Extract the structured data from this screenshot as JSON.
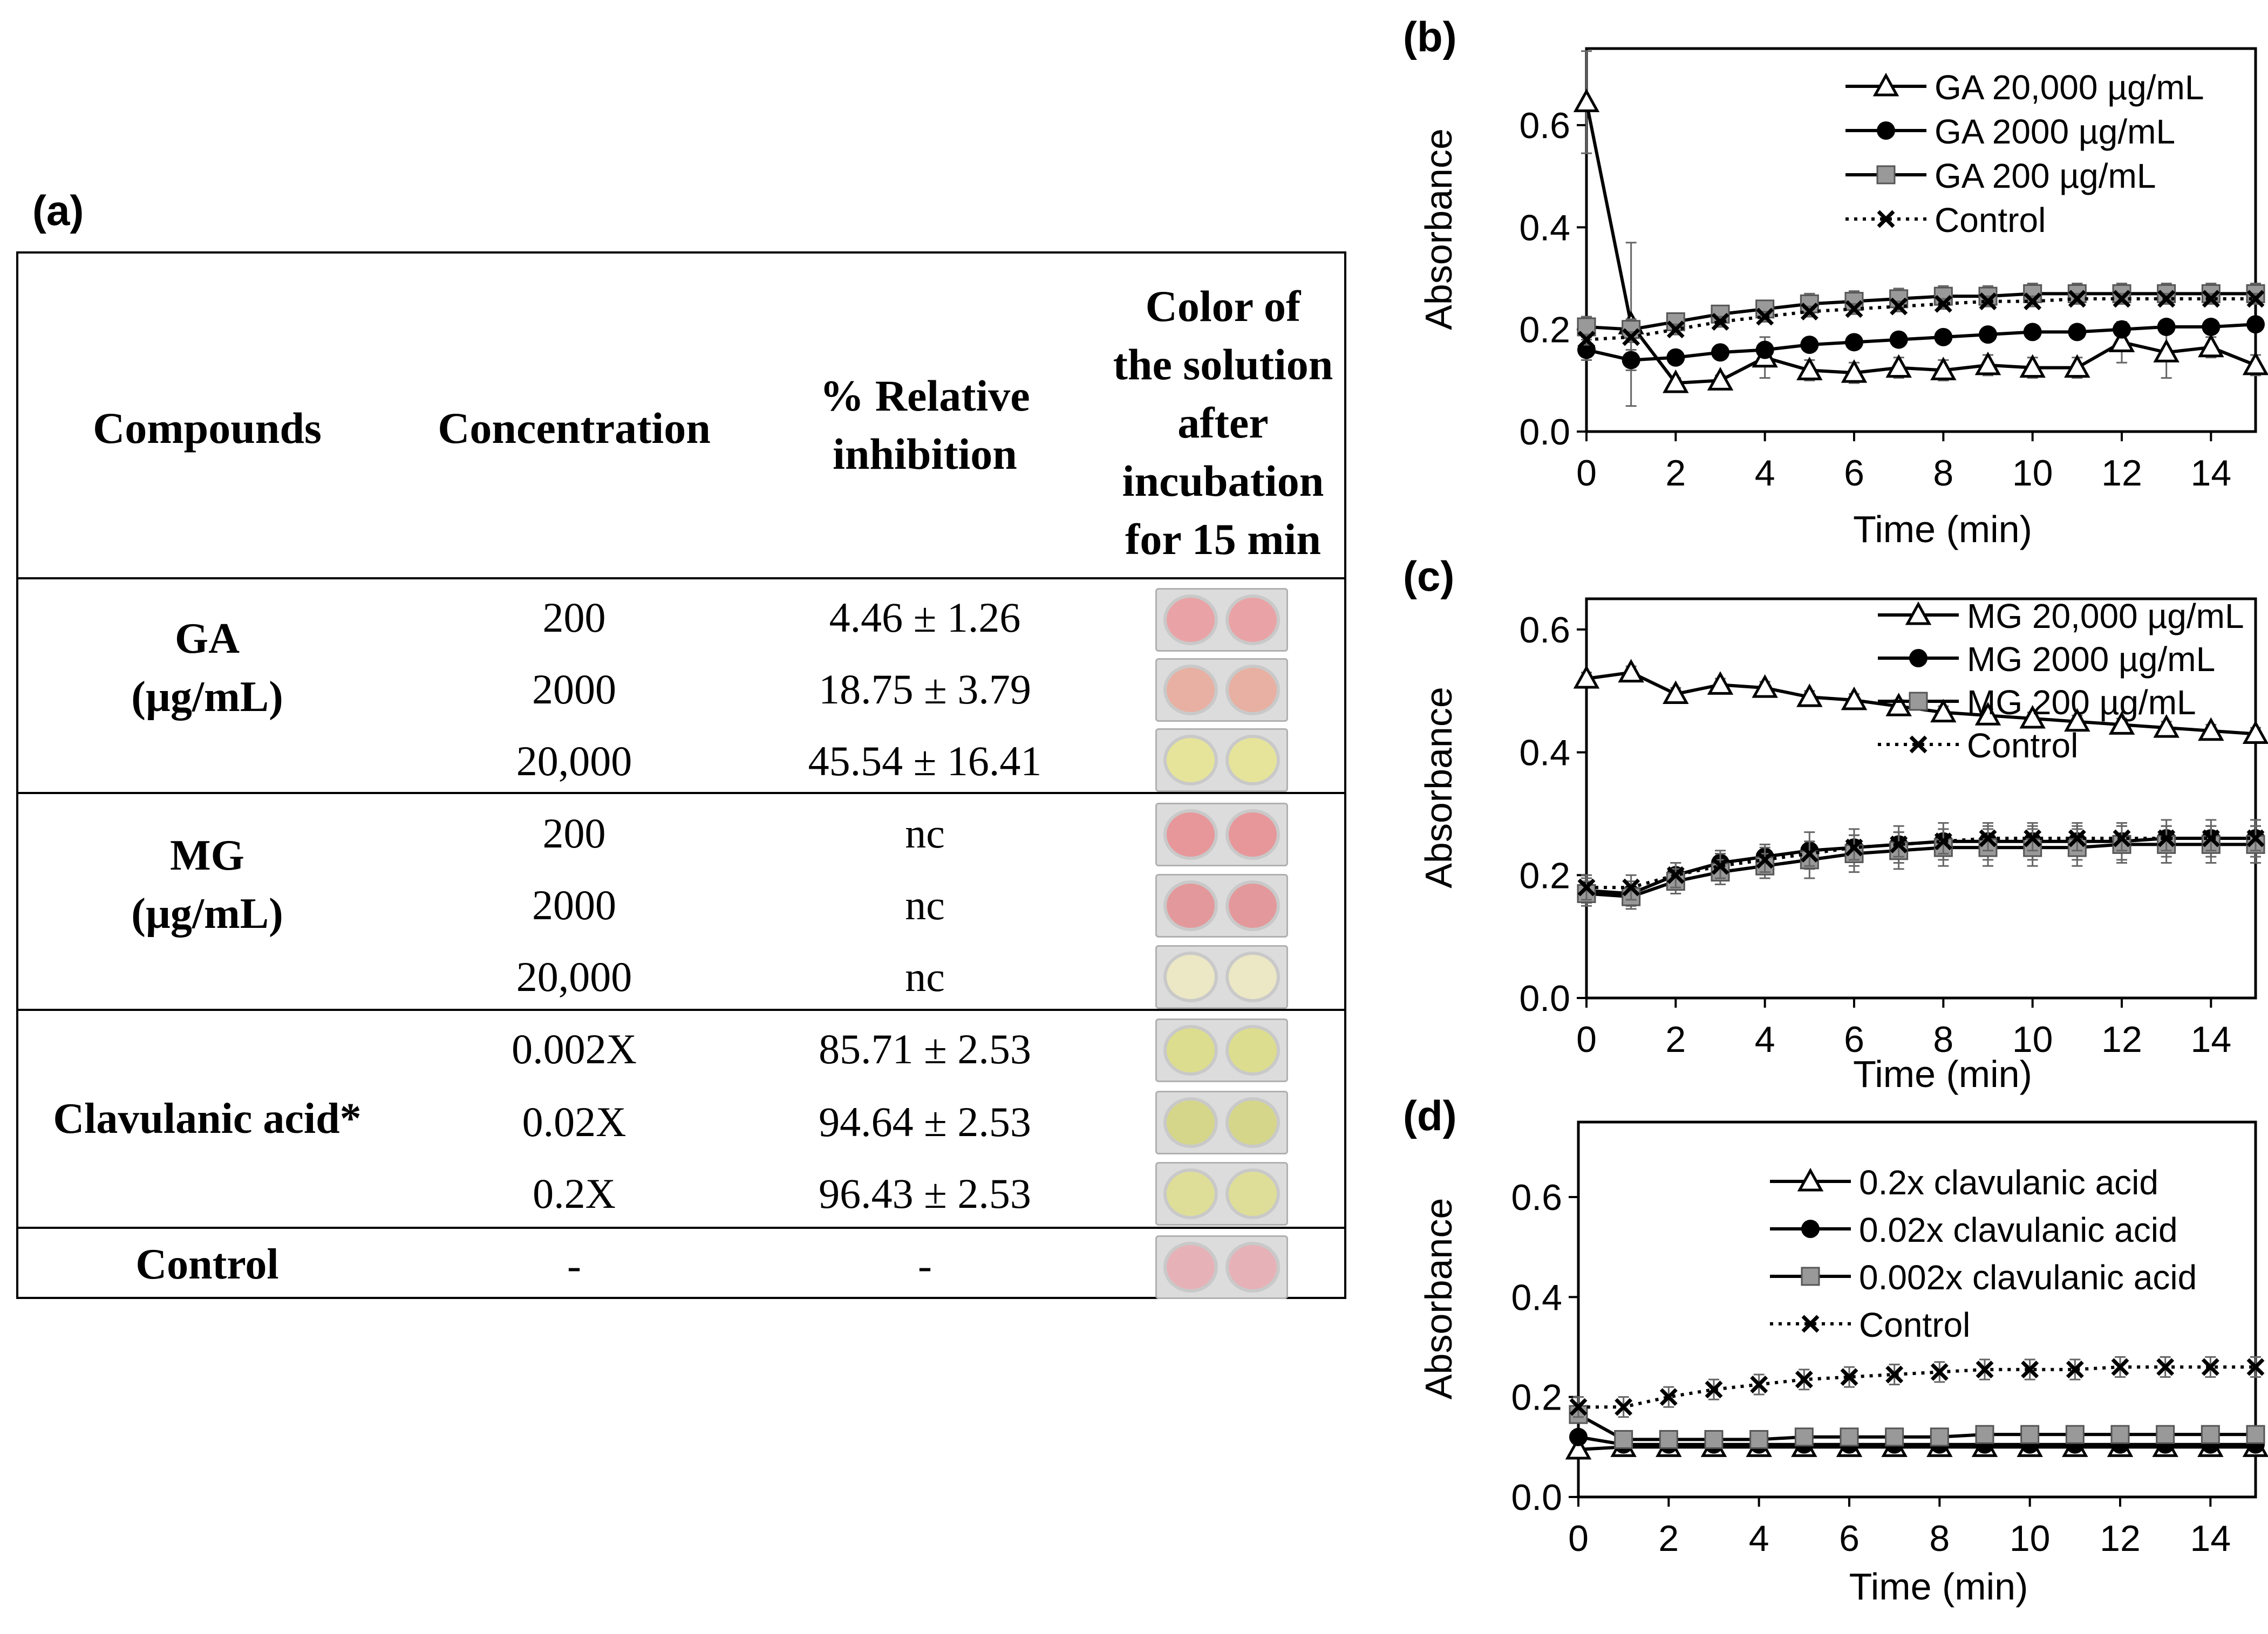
{
  "panel_a": {
    "label": "(a)",
    "headers": {
      "compounds": "Compounds",
      "concentration": "Concentration",
      "inhibition_line1": "% Relative",
      "inhibition_line2": "inhibition",
      "color_line1": "Color of",
      "color_line2": "the solution",
      "color_line3": "after",
      "color_line4": "incubation",
      "color_line5": "for  15 min"
    },
    "groups": [
      {
        "name_line1": "GA",
        "name_line2": "(µg/mL)",
        "rows": [
          {
            "conc": "200",
            "inhibition": "4.46 ± 1.26",
            "well_color": "#e9a3a6"
          },
          {
            "conc": "2000",
            "inhibition": "18.75 ± 3.79",
            "well_color": "#e8b0a2"
          },
          {
            "conc": "20,000",
            "inhibition": "45.54 ± 16.41",
            "well_color": "#e6e49a"
          }
        ]
      },
      {
        "name_line1": "MG",
        "name_line2": "(µg/mL)",
        "rows": [
          {
            "conc": "200",
            "inhibition": "nc",
            "well_color": "#e7979a"
          },
          {
            "conc": "2000",
            "inhibition": "nc",
            "well_color": "#e3999b"
          },
          {
            "conc": "20,000",
            "inhibition": "nc",
            "well_color": "#ece7c4"
          }
        ]
      },
      {
        "name_line1": "Clavulanic acid*",
        "name_line2": "",
        "rows": [
          {
            "conc": "0.002X",
            "inhibition": "85.71 ± 2.53",
            "well_color": "#dcdd8e"
          },
          {
            "conc": "0.02X",
            "inhibition": "94.64 ± 2.53",
            "well_color": "#d6d68a"
          },
          {
            "conc": "0.2X",
            "inhibition": "96.43 ± 2.53",
            "well_color": "#dede98"
          }
        ]
      },
      {
        "name_line1": "Control",
        "name_line2": "",
        "rows": [
          {
            "conc": "-",
            "inhibition": "-",
            "well_color": "#e6b2b8"
          }
        ]
      }
    ]
  },
  "chart_data": [
    {
      "panel": "(b)",
      "type": "line",
      "xlabel": "Time (min)",
      "ylabel": "Absorbance",
      "xlim": [
        0,
        15
      ],
      "ylim": [
        0,
        0.75
      ],
      "xticks": [
        "0",
        "2",
        "4",
        "6",
        "8",
        "10",
        "12",
        "14"
      ],
      "yticks": [
        "0.0",
        "0.2",
        "0.4",
        "0.6"
      ],
      "x": [
        0,
        1,
        2,
        3,
        4,
        5,
        6,
        7,
        8,
        9,
        10,
        11,
        12,
        13,
        14,
        15
      ],
      "series": [
        {
          "name": "GA 20,000 µg/mL",
          "marker": "triangle",
          "dotted": false,
          "values": [
            0.645,
            0.21,
            0.095,
            0.1,
            0.145,
            0.12,
            0.115,
            0.125,
            0.12,
            0.13,
            0.125,
            0.125,
            0.175,
            0.155,
            0.165,
            0.13
          ],
          "err": [
            0.1,
            0.16,
            0.01,
            0.01,
            0.04,
            0.02,
            0.02,
            0.02,
            0.02,
            0.02,
            0.02,
            0.02,
            0.04,
            0.05,
            0.02,
            0.02
          ]
        },
        {
          "name": "GA 2000 µg/mL",
          "marker": "circle",
          "dotted": false,
          "values": [
            0.16,
            0.14,
            0.145,
            0.155,
            0.16,
            0.17,
            0.175,
            0.18,
            0.185,
            0.19,
            0.195,
            0.195,
            0.2,
            0.205,
            0.205,
            0.21
          ],
          "err": [
            0.02,
            0.02,
            0.01,
            0.01,
            0.01,
            0.01,
            0.01,
            0.01,
            0.01,
            0.01,
            0.01,
            0.01,
            0.01,
            0.01,
            0.01,
            0.01
          ]
        },
        {
          "name": "GA 200 µg/mL",
          "marker": "square",
          "dotted": false,
          "values": [
            0.205,
            0.2,
            0.215,
            0.23,
            0.24,
            0.25,
            0.255,
            0.26,
            0.265,
            0.265,
            0.27,
            0.27,
            0.27,
            0.27,
            0.27,
            0.27
          ],
          "err": [
            0.02,
            0.02,
            0.015,
            0.015,
            0.015,
            0.02,
            0.02,
            0.02,
            0.02,
            0.02,
            0.02,
            0.02,
            0.02,
            0.02,
            0.02,
            0.02
          ]
        },
        {
          "name": "Control",
          "marker": "x",
          "dotted": true,
          "values": [
            0.18,
            0.185,
            0.2,
            0.215,
            0.225,
            0.235,
            0.24,
            0.245,
            0.25,
            0.255,
            0.255,
            0.26,
            0.26,
            0.26,
            0.26,
            0.26
          ],
          "err": [
            0.01,
            0.01,
            0.01,
            0.01,
            0.01,
            0.01,
            0.01,
            0.01,
            0.01,
            0.01,
            0.01,
            0.01,
            0.01,
            0.01,
            0.01,
            0.01
          ]
        }
      ]
    },
    {
      "panel": "(c)",
      "type": "line",
      "xlabel": "Time (min)",
      "ylabel": "Absorbance",
      "xlim": [
        0,
        15
      ],
      "ylim": [
        0,
        0.65
      ],
      "xticks": [
        "0",
        "2",
        "4",
        "6",
        "8",
        "10",
        "12",
        "14"
      ],
      "yticks": [
        "0.0",
        "0.2",
        "0.4",
        "0.6"
      ],
      "x": [
        0,
        1,
        2,
        3,
        4,
        5,
        6,
        7,
        8,
        9,
        10,
        11,
        12,
        13,
        14,
        15
      ],
      "series": [
        {
          "name": "MG 20,000 µg/mL",
          "marker": "triangle",
          "dotted": false,
          "values": [
            0.52,
            0.53,
            0.495,
            0.51,
            0.505,
            0.49,
            0.485,
            0.475,
            0.465,
            0.46,
            0.455,
            0.45,
            0.445,
            0.44,
            0.435,
            0.43
          ],
          "err": [
            0.01,
            0.01,
            0.01,
            0.01,
            0.01,
            0.01,
            0.01,
            0.01,
            0.01,
            0.01,
            0.01,
            0.01,
            0.01,
            0.01,
            0.01,
            0.01
          ]
        },
        {
          "name": "MG 2000 µg/mL",
          "marker": "circle",
          "dotted": false,
          "values": [
            0.175,
            0.17,
            0.2,
            0.22,
            0.23,
            0.24,
            0.245,
            0.25,
            0.255,
            0.255,
            0.255,
            0.255,
            0.255,
            0.26,
            0.26,
            0.26
          ],
          "err": [
            0.02,
            0.02,
            0.02,
            0.02,
            0.02,
            0.03,
            0.03,
            0.03,
            0.03,
            0.03,
            0.03,
            0.03,
            0.03,
            0.03,
            0.03,
            0.03
          ]
        },
        {
          "name": "MG 200 µg/mL",
          "marker": "square",
          "dotted": false,
          "values": [
            0.17,
            0.165,
            0.19,
            0.205,
            0.215,
            0.225,
            0.235,
            0.24,
            0.245,
            0.245,
            0.245,
            0.245,
            0.25,
            0.25,
            0.25,
            0.25
          ],
          "err": [
            0.02,
            0.02,
            0.02,
            0.02,
            0.02,
            0.03,
            0.03,
            0.03,
            0.03,
            0.03,
            0.03,
            0.03,
            0.03,
            0.03,
            0.03,
            0.03
          ]
        },
        {
          "name": "Control",
          "marker": "x",
          "dotted": true,
          "values": [
            0.18,
            0.18,
            0.2,
            0.215,
            0.225,
            0.235,
            0.245,
            0.25,
            0.255,
            0.26,
            0.26,
            0.26,
            0.26,
            0.26,
            0.26,
            0.26
          ],
          "err": [
            0.02,
            0.02,
            0.02,
            0.02,
            0.02,
            0.02,
            0.02,
            0.02,
            0.02,
            0.02,
            0.02,
            0.02,
            0.02,
            0.02,
            0.02,
            0.02
          ]
        }
      ]
    },
    {
      "panel": "(d)",
      "type": "line",
      "xlabel": "Time (min)",
      "ylabel": "Absorbance",
      "xlim": [
        0,
        15
      ],
      "ylim": [
        0,
        0.75
      ],
      "xticks": [
        "0",
        "2",
        "4",
        "6",
        "8",
        "10",
        "12",
        "14"
      ],
      "yticks": [
        "0.0",
        "0.2",
        "0.4",
        "0.6"
      ],
      "x": [
        0,
        1,
        2,
        3,
        4,
        5,
        6,
        7,
        8,
        9,
        10,
        11,
        12,
        13,
        14,
        15
      ],
      "series": [
        {
          "name": "0.2x clavulanic acid",
          "marker": "triangle",
          "dotted": false,
          "values": [
            0.095,
            0.1,
            0.1,
            0.1,
            0.1,
            0.1,
            0.1,
            0.1,
            0.1,
            0.1,
            0.1,
            0.1,
            0.1,
            0.1,
            0.1,
            0.1
          ],
          "err": [
            0.005,
            0.005,
            0.005,
            0.005,
            0.005,
            0.005,
            0.005,
            0.005,
            0.005,
            0.005,
            0.005,
            0.005,
            0.005,
            0.005,
            0.005,
            0.005
          ]
        },
        {
          "name": "0.02x clavulanic acid",
          "marker": "circle",
          "dotted": false,
          "values": [
            0.12,
            0.105,
            0.105,
            0.105,
            0.105,
            0.105,
            0.105,
            0.105,
            0.105,
            0.105,
            0.105,
            0.105,
            0.105,
            0.105,
            0.105,
            0.105
          ],
          "err": [
            0.005,
            0.005,
            0.005,
            0.005,
            0.005,
            0.005,
            0.005,
            0.005,
            0.005,
            0.005,
            0.005,
            0.005,
            0.005,
            0.005,
            0.005,
            0.005
          ]
        },
        {
          "name": " 0.002x clavulanic acid",
          "marker": "square",
          "dotted": false,
          "values": [
            0.165,
            0.115,
            0.115,
            0.115,
            0.115,
            0.12,
            0.12,
            0.12,
            0.12,
            0.125,
            0.125,
            0.125,
            0.125,
            0.125,
            0.125,
            0.125
          ],
          "err": [
            0.005,
            0.005,
            0.005,
            0.005,
            0.005,
            0.005,
            0.005,
            0.005,
            0.005,
            0.005,
            0.005,
            0.005,
            0.005,
            0.005,
            0.005,
            0.005
          ]
        },
        {
          "name": "Control",
          "marker": "x",
          "dotted": true,
          "values": [
            0.18,
            0.18,
            0.2,
            0.215,
            0.225,
            0.235,
            0.24,
            0.245,
            0.25,
            0.255,
            0.255,
            0.255,
            0.26,
            0.26,
            0.26,
            0.26
          ],
          "err": [
            0.02,
            0.02,
            0.02,
            0.02,
            0.02,
            0.02,
            0.02,
            0.02,
            0.02,
            0.02,
            0.02,
            0.02,
            0.02,
            0.02,
            0.02,
            0.02
          ]
        }
      ]
    }
  ]
}
